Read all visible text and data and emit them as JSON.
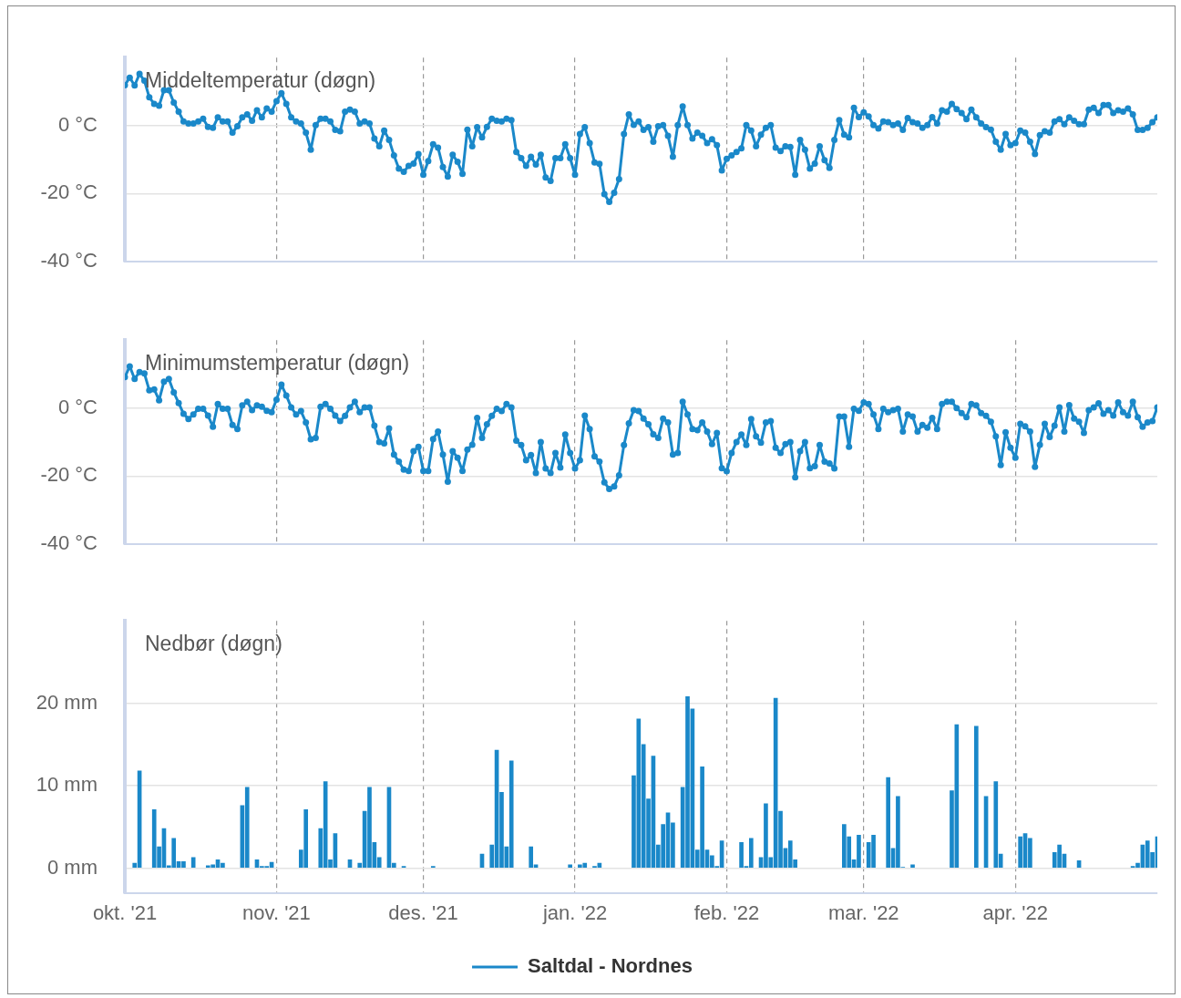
{
  "chart_data": [
    {
      "type": "line",
      "title": "Middeltemperatur (døgn)",
      "marker": "circle",
      "grid": true,
      "tick_labels": "y",
      "xlim": [
        "2021-10-01",
        "2022-04-30"
      ],
      "ylim": [
        -40,
        20
      ],
      "xticks": [
        {
          "value": "2021-10-01",
          "label": null
        },
        {
          "value": "2021-11-01",
          "label": null
        },
        {
          "value": "2021-12-01",
          "label": null
        },
        {
          "value": "2022-01-01",
          "label": null
        },
        {
          "value": "2022-02-01",
          "label": null
        },
        {
          "value": "2022-03-01",
          "label": null
        },
        {
          "value": "2022-04-01",
          "label": null
        }
      ],
      "yticks": [
        {
          "value": -40,
          "label": "-40 °C"
        },
        {
          "value": -20,
          "label": "-20 °C"
        },
        {
          "value": 0,
          "label": "0 °C"
        }
      ],
      "x": [
        "2021-10-01",
        "2021-10-02",
        "2021-10-03",
        "2021-10-04",
        "2021-10-05",
        "2021-10-06",
        "2021-10-07",
        "2021-10-08",
        "2021-10-09",
        "2021-10-10",
        "2021-10-11",
        "2021-10-12",
        "2021-10-13",
        "2021-10-14",
        "2021-10-15",
        "2021-10-16",
        "2021-10-17",
        "2021-10-18",
        "2021-10-19",
        "2021-10-20",
        "2021-10-21",
        "2021-10-22",
        "2021-10-23",
        "2021-10-24",
        "2021-10-25",
        "2021-10-26",
        "2021-10-27",
        "2021-10-28",
        "2021-10-29",
        "2021-10-30",
        "2021-10-31",
        "2021-11-01",
        "2021-11-02",
        "2021-11-03",
        "2021-11-04",
        "2021-11-05",
        "2021-11-06",
        "2021-11-07",
        "2021-11-08",
        "2021-11-09",
        "2021-11-10",
        "2021-11-11",
        "2021-11-12",
        "2021-11-13",
        "2021-11-14",
        "2021-11-15",
        "2021-11-16",
        "2021-11-17",
        "2021-11-18",
        "2021-11-19",
        "2021-11-20",
        "2021-11-21",
        "2021-11-22",
        "2021-11-23",
        "2021-11-24",
        "2021-11-25",
        "2021-11-26",
        "2021-11-27",
        "2021-11-28",
        "2021-11-29",
        "2021-11-30",
        "2021-12-01",
        "2021-12-02",
        "2021-12-03",
        "2021-12-04",
        "2021-12-05",
        "2021-12-06",
        "2021-12-07",
        "2021-12-08",
        "2021-12-09",
        "2021-12-10",
        "2021-12-11",
        "2021-12-12",
        "2021-12-13",
        "2021-12-14",
        "2021-12-15",
        "2021-12-16",
        "2021-12-17",
        "2021-12-18",
        "2021-12-19",
        "2021-12-20",
        "2021-12-21",
        "2021-12-22",
        "2021-12-23",
        "2021-12-24",
        "2021-12-25",
        "2021-12-26",
        "2021-12-27",
        "2021-12-28",
        "2021-12-29",
        "2021-12-30",
        "2021-12-31",
        "2022-01-01",
        "2022-01-02",
        "2022-01-03",
        "2022-01-04",
        "2022-01-05",
        "2022-01-06",
        "2022-01-07",
        "2022-01-08",
        "2022-01-09",
        "2022-01-10",
        "2022-01-11",
        "2022-01-12",
        "2022-01-13",
        "2022-01-14",
        "2022-01-15",
        "2022-01-16",
        "2022-01-17",
        "2022-01-18",
        "2022-01-19",
        "2022-01-20",
        "2022-01-21",
        "2022-01-22",
        "2022-01-23",
        "2022-01-24",
        "2022-01-25",
        "2022-01-26",
        "2022-01-27",
        "2022-01-28",
        "2022-01-29",
        "2022-01-30",
        "2022-01-31",
        "2022-02-01",
        "2022-02-02",
        "2022-02-03",
        "2022-02-04",
        "2022-02-05",
        "2022-02-06",
        "2022-02-07",
        "2022-02-08",
        "2022-02-09",
        "2022-02-10",
        "2022-02-11",
        "2022-02-12",
        "2022-02-13",
        "2022-02-14",
        "2022-02-15",
        "2022-02-16",
        "2022-02-17",
        "2022-02-18",
        "2022-02-19",
        "2022-02-20",
        "2022-02-21",
        "2022-02-22",
        "2022-02-23",
        "2022-02-24",
        "2022-02-25",
        "2022-02-26",
        "2022-02-27",
        "2022-02-28",
        "2022-03-01",
        "2022-03-02",
        "2022-03-03",
        "2022-03-04",
        "2022-03-05",
        "2022-03-06",
        "2022-03-07",
        "2022-03-08",
        "2022-03-09",
        "2022-03-10",
        "2022-03-11",
        "2022-03-12",
        "2022-03-13",
        "2022-03-14",
        "2022-03-15",
        "2022-03-16",
        "2022-03-17",
        "2022-03-18",
        "2022-03-19",
        "2022-03-20",
        "2022-03-21",
        "2022-03-22",
        "2022-03-23",
        "2022-03-24",
        "2022-03-25",
        "2022-03-26",
        "2022-03-27",
        "2022-03-28",
        "2022-03-29",
        "2022-03-30",
        "2022-03-31",
        "2022-04-01",
        "2022-04-02",
        "2022-04-03",
        "2022-04-04",
        "2022-04-05",
        "2022-04-06",
        "2022-04-07",
        "2022-04-08",
        "2022-04-09",
        "2022-04-10",
        "2022-04-11",
        "2022-04-12",
        "2022-04-13",
        "2022-04-14",
        "2022-04-15",
        "2022-04-16",
        "2022-04-17",
        "2022-04-18",
        "2022-04-19",
        "2022-04-20",
        "2022-04-21",
        "2022-04-22",
        "2022-04-23",
        "2022-04-24",
        "2022-04-25",
        "2022-04-26",
        "2022-04-27",
        "2022-04-28",
        "2022-04-29",
        "2022-04-30"
      ],
      "series": [
        {
          "color": "#1a88c9",
          "values": [
            11.9,
            14.1,
            11.8,
            15.2,
            13.2,
            8.3,
            6.4,
            5.8,
            10.4,
            10.4,
            6.8,
            4.1,
            1.2,
            0.6,
            0.6,
            1.2,
            2.0,
            -0.4,
            -0.7,
            2.4,
            1.2,
            1.2,
            -2.1,
            -0.2,
            2.4,
            3.3,
            1.4,
            4.5,
            2.4,
            5.0,
            4.1,
            7.2,
            9.5,
            6.4,
            2.4,
            1.2,
            0.6,
            -2.1,
            -7.1,
            0.1,
            2.0,
            2.0,
            1.2,
            -1.3,
            -1.7,
            4.1,
            4.7,
            4.1,
            0.6,
            1.2,
            0.6,
            -3.8,
            -6.1,
            -1.5,
            -4.2,
            -8.8,
            -12.7,
            -13.6,
            -11.9,
            -11.2,
            -8.4,
            -14.5,
            -10.5,
            -5.5,
            -6.5,
            -12.2,
            -15.0,
            -8.6,
            -10.7,
            -14.2,
            -1.2,
            -6.1,
            -0.5,
            -3.5,
            -0.4,
            2.0,
            1.4,
            1.2,
            2.0,
            1.6,
            -7.8,
            -9.6,
            -11.9,
            -9.2,
            -11.5,
            -8.6,
            -15.3,
            -16.3,
            -9.6,
            -9.6,
            -5.5,
            -9.6,
            -14.5,
            -2.5,
            -0.5,
            -5.2,
            -10.9,
            -11.3,
            -20.2,
            -22.5,
            -19.8,
            -15.8,
            -2.5,
            3.3,
            0.2,
            1.2,
            -1.3,
            -0.5,
            -4.8,
            -0.2,
            0.1,
            -3.0,
            -9.2,
            0.1,
            5.6,
            0.1,
            -3.8,
            -2.1,
            -3.0,
            -5.2,
            -4.0,
            -5.8,
            -13.2,
            -9.8,
            -8.8,
            -7.8,
            -6.7,
            0.1,
            -1.5,
            -6.1,
            -2.7,
            -0.7,
            0.1,
            -6.5,
            -7.5,
            -6.1,
            -6.3,
            -14.5,
            -4.2,
            -7.1,
            -12.7,
            -11.2,
            -6.1,
            -10.2,
            -12.5,
            -4.2,
            1.6,
            -2.7,
            -3.5,
            5.2,
            2.5,
            3.9,
            2.7,
            0.1,
            -0.9,
            1.2,
            1.0,
            0.1,
            0.6,
            -1.3,
            2.2,
            1.0,
            0.6,
            -0.7,
            0.1,
            2.5,
            0.6,
            4.5,
            4.1,
            6.4,
            4.8,
            3.7,
            1.9,
            4.7,
            2.4,
            0.6,
            -0.5,
            -1.2,
            -4.8,
            -7.1,
            -2.5,
            -5.8,
            -5.2,
            -1.5,
            -2.1,
            -4.8,
            -8.4,
            -2.8,
            -1.7,
            -2.1,
            1.2,
            1.9,
            0.4,
            2.4,
            1.4,
            0.4,
            0.4,
            4.7,
            5.2,
            3.7,
            6.0,
            6.0,
            3.7,
            4.5,
            4.1,
            5.0,
            3.3,
            -1.3,
            -1.3,
            -0.7,
            1.0,
            2.4
          ]
        }
      ]
    },
    {
      "type": "line",
      "title": "Minimumstemperatur (døgn)",
      "marker": "circle",
      "grid": true,
      "tick_labels": "y",
      "xlim": [
        "2021-10-01",
        "2022-04-30"
      ],
      "ylim": [
        -40,
        20
      ],
      "xticks": [
        {
          "value": "2021-10-01",
          "label": null
        },
        {
          "value": "2021-11-01",
          "label": null
        },
        {
          "value": "2021-12-01",
          "label": null
        },
        {
          "value": "2022-01-01",
          "label": null
        },
        {
          "value": "2022-02-01",
          "label": null
        },
        {
          "value": "2022-03-01",
          "label": null
        },
        {
          "value": "2022-04-01",
          "label": null
        }
      ],
      "yticks": [
        {
          "value": -40,
          "label": "-40 °C"
        },
        {
          "value": -20,
          "label": "-20 °C"
        },
        {
          "value": 0,
          "label": "0 °C"
        }
      ],
      "x": [
        "2021-10-01",
        "2021-10-02",
        "2021-10-03",
        "2021-10-04",
        "2021-10-05",
        "2021-10-06",
        "2021-10-07",
        "2021-10-08",
        "2021-10-09",
        "2021-10-10",
        "2021-10-11",
        "2021-10-12",
        "2021-10-13",
        "2021-10-14",
        "2021-10-15",
        "2021-10-16",
        "2021-10-17",
        "2021-10-18",
        "2021-10-19",
        "2021-10-20",
        "2021-10-21",
        "2021-10-22",
        "2021-10-23",
        "2021-10-24",
        "2021-10-25",
        "2021-10-26",
        "2021-10-27",
        "2021-10-28",
        "2021-10-29",
        "2021-10-30",
        "2021-10-31",
        "2021-11-01",
        "2021-11-02",
        "2021-11-03",
        "2021-11-04",
        "2021-11-05",
        "2021-11-06",
        "2021-11-07",
        "2021-11-08",
        "2021-11-09",
        "2021-11-10",
        "2021-11-11",
        "2021-11-12",
        "2021-11-13",
        "2021-11-14",
        "2021-11-15",
        "2021-11-16",
        "2021-11-17",
        "2021-11-18",
        "2021-11-19",
        "2021-11-20",
        "2021-11-21",
        "2021-11-22",
        "2021-11-23",
        "2021-11-24",
        "2021-11-25",
        "2021-11-26",
        "2021-11-27",
        "2021-11-28",
        "2021-11-29",
        "2021-11-30",
        "2021-12-01",
        "2021-12-02",
        "2021-12-03",
        "2021-12-04",
        "2021-12-05",
        "2021-12-06",
        "2021-12-07",
        "2021-12-08",
        "2021-12-09",
        "2021-12-10",
        "2021-12-11",
        "2021-12-12",
        "2021-12-13",
        "2021-12-14",
        "2021-12-15",
        "2021-12-16",
        "2021-12-17",
        "2021-12-18",
        "2021-12-19",
        "2021-12-20",
        "2021-12-21",
        "2021-12-22",
        "2021-12-23",
        "2021-12-24",
        "2021-12-25",
        "2021-12-26",
        "2021-12-27",
        "2021-12-28",
        "2021-12-29",
        "2021-12-30",
        "2021-12-31",
        "2022-01-01",
        "2022-01-02",
        "2022-01-03",
        "2022-01-04",
        "2022-01-05",
        "2022-01-06",
        "2022-01-07",
        "2022-01-08",
        "2022-01-09",
        "2022-01-10",
        "2022-01-11",
        "2022-01-12",
        "2022-01-13",
        "2022-01-14",
        "2022-01-15",
        "2022-01-16",
        "2022-01-17",
        "2022-01-18",
        "2022-01-19",
        "2022-01-20",
        "2022-01-21",
        "2022-01-22",
        "2022-01-23",
        "2022-01-24",
        "2022-01-25",
        "2022-01-26",
        "2022-01-27",
        "2022-01-28",
        "2022-01-29",
        "2022-01-30",
        "2022-01-31",
        "2022-02-01",
        "2022-02-02",
        "2022-02-03",
        "2022-02-04",
        "2022-02-05",
        "2022-02-06",
        "2022-02-07",
        "2022-02-08",
        "2022-02-09",
        "2022-02-10",
        "2022-02-11",
        "2022-02-12",
        "2022-02-13",
        "2022-02-14",
        "2022-02-15",
        "2022-02-16",
        "2022-02-17",
        "2022-02-18",
        "2022-02-19",
        "2022-02-20",
        "2022-02-21",
        "2022-02-22",
        "2022-02-23",
        "2022-02-24",
        "2022-02-25",
        "2022-02-26",
        "2022-02-27",
        "2022-02-28",
        "2022-03-01",
        "2022-03-02",
        "2022-03-03",
        "2022-03-04",
        "2022-03-05",
        "2022-03-06",
        "2022-03-07",
        "2022-03-08",
        "2022-03-09",
        "2022-03-10",
        "2022-03-11",
        "2022-03-12",
        "2022-03-13",
        "2022-03-14",
        "2022-03-15",
        "2022-03-16",
        "2022-03-17",
        "2022-03-18",
        "2022-03-19",
        "2022-03-20",
        "2022-03-21",
        "2022-03-22",
        "2022-03-23",
        "2022-03-24",
        "2022-03-25",
        "2022-03-26",
        "2022-03-27",
        "2022-03-28",
        "2022-03-29",
        "2022-03-30",
        "2022-03-31",
        "2022-04-01",
        "2022-04-02",
        "2022-04-03",
        "2022-04-04",
        "2022-04-05",
        "2022-04-06",
        "2022-04-07",
        "2022-04-08",
        "2022-04-09",
        "2022-04-10",
        "2022-04-11",
        "2022-04-12",
        "2022-04-13",
        "2022-04-14",
        "2022-04-15",
        "2022-04-16",
        "2022-04-17",
        "2022-04-18",
        "2022-04-19",
        "2022-04-20",
        "2022-04-21",
        "2022-04-22",
        "2022-04-23",
        "2022-04-24",
        "2022-04-25",
        "2022-04-26",
        "2022-04-27",
        "2022-04-28",
        "2022-04-29",
        "2022-04-30"
      ],
      "series": [
        {
          "color": "#1a88c9",
          "values": [
            9.1,
            12.3,
            8.6,
            10.6,
            10.2,
            5.2,
            5.5,
            2.3,
            7.8,
            8.6,
            4.6,
            1.5,
            -1.7,
            -3.2,
            -1.9,
            -0.2,
            -0.2,
            -2.2,
            -5.5,
            1.2,
            -0.2,
            -0.2,
            -5.0,
            -6.2,
            0.8,
            1.9,
            -0.6,
            0.8,
            0.4,
            -0.8,
            -1.2,
            2.5,
            6.9,
            3.7,
            0.2,
            -1.9,
            -0.9,
            -4.2,
            -9.2,
            -8.8,
            0.4,
            1.2,
            -0.2,
            -2.2,
            -3.8,
            -2.3,
            0.2,
            1.9,
            -1.2,
            0.2,
            0.2,
            -5.2,
            -10.0,
            -10.4,
            -6.0,
            -13.7,
            -15.8,
            -18.1,
            -18.5,
            -12.7,
            -11.4,
            -18.5,
            -18.5,
            -9.1,
            -6.9,
            -13.7,
            -21.7,
            -12.7,
            -14.6,
            -18.5,
            -12.2,
            -10.8,
            -2.9,
            -8.8,
            -4.8,
            -2.3,
            -0.2,
            -0.9,
            1.2,
            0.2,
            -9.6,
            -10.9,
            -15.4,
            -13.8,
            -19.1,
            -10.0,
            -17.8,
            -19.1,
            -13.2,
            -17.5,
            -7.8,
            -13.2,
            -17.8,
            -15.4,
            -2.2,
            -6.2,
            -14.2,
            -15.8,
            -21.9,
            -23.8,
            -23.1,
            -19.8,
            -10.9,
            -4.5,
            -0.6,
            -0.9,
            -3.1,
            -4.8,
            -7.7,
            -8.8,
            -3.1,
            -4.2,
            -13.7,
            -13.2,
            1.9,
            -1.9,
            -6.2,
            -6.5,
            -4.2,
            -6.9,
            -10.6,
            -7.3,
            -17.7,
            -18.6,
            -13.2,
            -10.0,
            -7.8,
            -10.9,
            -3.2,
            -8.3,
            -10.2,
            -4.2,
            -3.8,
            -11.7,
            -13.2,
            -10.6,
            -10.0,
            -20.4,
            -12.7,
            -10.0,
            -17.7,
            -17.1,
            -10.9,
            -15.8,
            -16.3,
            -17.8,
            -2.5,
            -2.5,
            -11.4,
            -0.2,
            -0.8,
            1.7,
            1.2,
            -1.9,
            -6.2,
            -0.2,
            -1.2,
            -0.6,
            -0.2,
            -6.9,
            -1.9,
            -2.5,
            -6.9,
            -5.0,
            -5.8,
            -2.9,
            -6.2,
            1.2,
            1.9,
            1.9,
            0,
            -1.5,
            -2.7,
            1.2,
            0.8,
            -1.5,
            -2.3,
            -4.0,
            -8.3,
            -16.8,
            -7.1,
            -11.7,
            -14.6,
            -4.6,
            -5.4,
            -6.9,
            -17.3,
            -10.8,
            -4.6,
            -8.5,
            -5.2,
            0.2,
            -6.9,
            0.9,
            -3.1,
            -4.0,
            -7.3,
            -0.6,
            0.2,
            1.4,
            -1.7,
            -0.6,
            -2.2,
            1.7,
            -1.2,
            -2.2,
            1.9,
            -2.7,
            -5.5,
            -4.2,
            -3.8,
            0.2
          ]
        }
      ]
    },
    {
      "type": "bar",
      "title": "Nedbør (døgn)",
      "grid": true,
      "legend": "bottom",
      "xlim": [
        "2021-10-01",
        "2022-04-30"
      ],
      "ylim": [
        -3,
        30
      ],
      "xticks": [
        {
          "value": "2021-10-01",
          "label": "okt. '21"
        },
        {
          "value": "2021-11-01",
          "label": "nov. '21"
        },
        {
          "value": "2021-12-01",
          "label": "des. '21"
        },
        {
          "value": "2022-01-01",
          "label": "jan. '22"
        },
        {
          "value": "2022-02-01",
          "label": "feb. '22"
        },
        {
          "value": "2022-03-01",
          "label": "mar. '22"
        },
        {
          "value": "2022-04-01",
          "label": "apr. '22"
        }
      ],
      "yticks": [
        {
          "value": 0,
          "label": "0 mm"
        },
        {
          "value": 10,
          "label": "10 mm"
        },
        {
          "value": 20,
          "label": "20 mm"
        }
      ],
      "series": [
        {
          "name": "Saltdal - Nordnes",
          "color": "#1a88c9",
          "x": [
            "2021-10-03",
            "2021-10-04",
            "2021-10-07",
            "2021-10-08",
            "2021-10-09",
            "2021-10-10",
            "2021-10-11",
            "2021-10-12",
            "2021-10-13",
            "2021-10-15",
            "2021-10-18",
            "2021-10-19",
            "2021-10-20",
            "2021-10-21",
            "2021-10-25",
            "2021-10-26",
            "2021-10-28",
            "2021-10-29",
            "2021-10-30",
            "2021-10-31",
            "2021-11-06",
            "2021-11-07",
            "2021-11-10",
            "2021-11-11",
            "2021-11-12",
            "2021-11-13",
            "2021-11-16",
            "2021-11-18",
            "2021-11-19",
            "2021-11-20",
            "2021-11-21",
            "2021-11-22",
            "2021-11-24",
            "2021-11-25",
            "2021-11-27",
            "2021-12-03",
            "2021-12-13",
            "2021-12-15",
            "2021-12-16",
            "2021-12-17",
            "2021-12-18",
            "2021-12-19",
            "2021-12-23",
            "2021-12-24",
            "2021-12-31",
            "2022-01-02",
            "2022-01-03",
            "2022-01-05",
            "2022-01-06",
            "2022-01-13",
            "2022-01-14",
            "2022-01-15",
            "2022-01-16",
            "2022-01-17",
            "2022-01-18",
            "2022-01-19",
            "2022-01-20",
            "2022-01-21",
            "2022-01-23",
            "2022-01-24",
            "2022-01-25",
            "2022-01-26",
            "2022-01-27",
            "2022-01-28",
            "2022-01-29",
            "2022-01-30",
            "2022-01-31",
            "2022-02-04",
            "2022-02-05",
            "2022-02-06",
            "2022-02-08",
            "2022-02-09",
            "2022-02-10",
            "2022-02-11",
            "2022-02-12",
            "2022-02-13",
            "2022-02-14",
            "2022-02-15",
            "2022-02-25",
            "2022-02-26",
            "2022-02-27",
            "2022-02-28",
            "2022-03-02",
            "2022-03-03",
            "2022-03-06",
            "2022-03-07",
            "2022-03-08",
            "2022-03-09",
            "2022-03-11",
            "2022-03-19",
            "2022-03-20",
            "2022-03-24",
            "2022-03-26",
            "2022-03-28",
            "2022-03-29",
            "2022-04-02",
            "2022-04-03",
            "2022-04-04",
            "2022-04-09",
            "2022-04-10",
            "2022-04-11",
            "2022-04-14",
            "2022-04-25",
            "2022-04-26",
            "2022-04-27",
            "2022-04-28",
            "2022-04-29",
            "2022-04-30"
          ],
          "values": [
            0.6,
            11.8,
            7.1,
            2.6,
            4.8,
            0.3,
            3.6,
            0.8,
            0.8,
            1.3,
            0.3,
            0.4,
            1.0,
            0.6,
            7.6,
            9.8,
            1.0,
            0.2,
            0.2,
            0.7,
            2.2,
            7.1,
            4.8,
            10.5,
            1.0,
            4.2,
            1.0,
            0.6,
            6.9,
            9.8,
            3.1,
            1.3,
            9.8,
            0.6,
            0.2,
            0.2,
            1.7,
            2.8,
            14.3,
            9.2,
            2.6,
            13.0,
            2.6,
            0.4,
            0.4,
            0.4,
            0.6,
            0.2,
            0.6,
            11.2,
            18.1,
            15.0,
            8.4,
            13.6,
            2.8,
            5.3,
            6.7,
            5.5,
            9.8,
            20.8,
            19.3,
            2.2,
            12.3,
            2.2,
            1.5,
            0.2,
            3.3,
            3.1,
            0.2,
            3.6,
            1.3,
            7.8,
            1.3,
            20.6,
            6.9,
            2.4,
            3.3,
            1.0,
            5.3,
            3.8,
            1.0,
            4.0,
            3.1,
            4.0,
            11.0,
            2.4,
            8.7,
            0.1,
            0.4,
            9.4,
            17.4,
            17.2,
            8.7,
            10.5,
            1.7,
            3.8,
            4.2,
            3.6,
            1.9,
            2.8,
            1.7,
            0.9,
            0.2,
            0.6,
            2.8,
            3.3,
            1.9,
            3.8
          ]
        }
      ]
    }
  ]
}
